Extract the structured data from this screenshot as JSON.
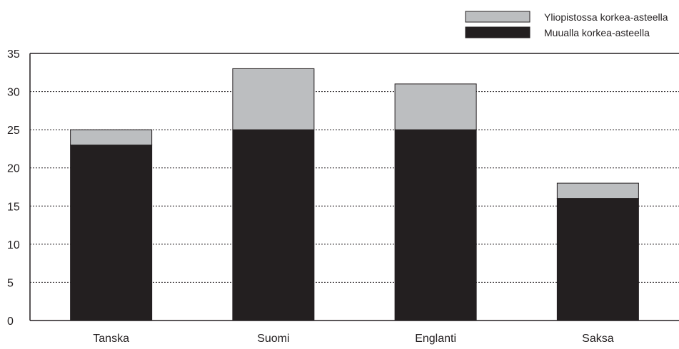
{
  "chart_data": {
    "type": "bar",
    "stacked": true,
    "categories": [
      "Tanska",
      "Suomi",
      "Englanti",
      "Saksa"
    ],
    "series": [
      {
        "name": "Muualla korkea-asteella",
        "values": [
          23,
          25,
          25,
          16
        ],
        "color": "#231f20"
      },
      {
        "name": "Yliopistossa korkea-asteella",
        "values": [
          2,
          8,
          6,
          2
        ],
        "color": "#bcbec0"
      }
    ],
    "ylim": [
      0,
      35
    ],
    "yticks": [
      0,
      5,
      10,
      15,
      20,
      25,
      30,
      35
    ],
    "grid": true,
    "grid_style": "dotted",
    "legend_position": "top-right",
    "title": "",
    "xlabel": "",
    "ylabel": ""
  }
}
